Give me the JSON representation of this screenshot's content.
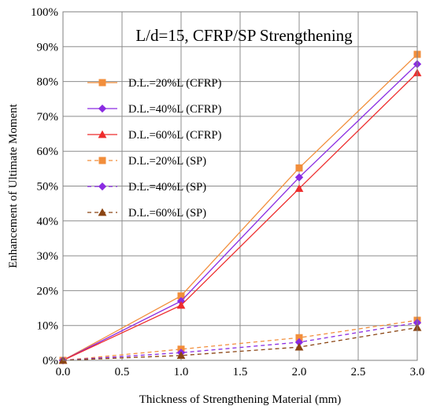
{
  "chart_data": {
    "type": "line",
    "title": "L/d=15, CFRP/SP Strengthening",
    "xlabel": "Thickness of Strengthening Material (mm)",
    "ylabel": "Enhancement of Ultimate Moment",
    "xlim": [
      0.0,
      3.0
    ],
    "ylim": [
      0,
      100
    ],
    "x_ticks": [
      "0.0",
      "0.5",
      "1.0",
      "1.5",
      "2.0",
      "2.5",
      "3.0"
    ],
    "y_ticks": [
      "0%",
      "10%",
      "20%",
      "30%",
      "40%",
      "50%",
      "60%",
      "70%",
      "80%",
      "90%",
      "100%"
    ],
    "grid": true,
    "legend_position": "left",
    "x": [
      0.0,
      1.0,
      2.0,
      3.0
    ],
    "series": [
      {
        "name": "D.L.=20%L (CFRP)",
        "values": [
          0,
          18.5,
          55.2,
          87.8
        ],
        "color": "#f28e3b",
        "marker": "square",
        "dash": false
      },
      {
        "name": "D.L.=40%L (CFRP)",
        "values": [
          0,
          17.0,
          52.5,
          85.0
        ],
        "color": "#8a2be2",
        "marker": "diamond",
        "dash": false
      },
      {
        "name": "D.L.=60%L (CFRP)",
        "values": [
          0,
          15.8,
          49.3,
          82.5
        ],
        "color": "#ee2c2c",
        "marker": "triangle",
        "dash": false
      },
      {
        "name": "D.L.=20%L (SP)",
        "values": [
          0,
          3.2,
          6.5,
          11.5
        ],
        "color": "#f28e3b",
        "marker": "square",
        "dash": true
      },
      {
        "name": "D.L.=40%L (SP)",
        "values": [
          0,
          2.2,
          5.2,
          10.8
        ],
        "color": "#8a2be2",
        "marker": "diamond",
        "dash": true
      },
      {
        "name": "D.L.=60%L (SP)",
        "values": [
          0,
          1.4,
          3.8,
          9.4
        ],
        "color": "#8b4513",
        "marker": "triangle",
        "dash": true
      }
    ]
  }
}
